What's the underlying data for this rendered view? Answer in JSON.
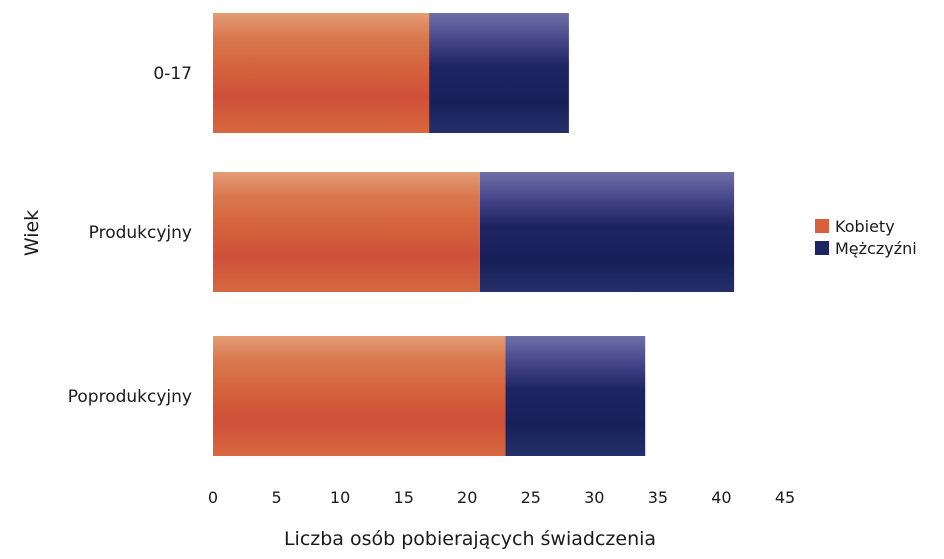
{
  "chart_data": {
    "type": "bar",
    "orientation": "horizontal",
    "stacked": true,
    "categories": [
      "0-17",
      "Produkcyjny",
      "Poprodukcyjny"
    ],
    "series": [
      {
        "name": "Kobiety",
        "values": [
          17,
          21,
          23
        ],
        "color": "#d9603a"
      },
      {
        "name": "Mężczyźni",
        "values": [
          11,
          20,
          11
        ],
        "color": "#1c2466"
      }
    ],
    "xlabel": "Liczba osób pobierających świadczenia",
    "ylabel": "Wiek",
    "xlim": [
      0,
      45
    ],
    "xticks": [
      "0",
      "5",
      "10",
      "15",
      "20",
      "25",
      "30",
      "35",
      "40",
      "45"
    ],
    "grid": false,
    "legend_position": "right"
  }
}
